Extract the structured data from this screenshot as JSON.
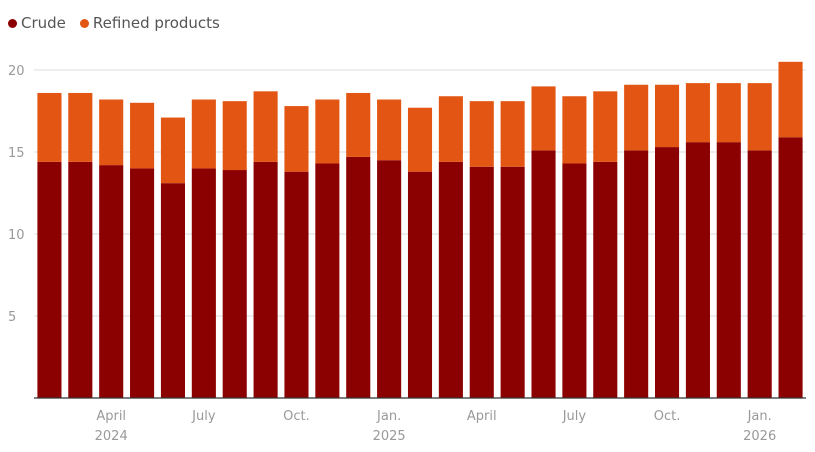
{
  "chart_data": {
    "type": "bar",
    "stacked": true,
    "title": "",
    "xlabel": "",
    "ylabel": "",
    "ylim": [
      0,
      20
    ],
    "yticks": [
      5,
      10,
      15,
      20
    ],
    "grid": true,
    "legend_position": "top-left",
    "categories": [
      "2024-02",
      "2024-03",
      "2024-04",
      "2024-05",
      "2024-06",
      "2024-07",
      "2024-08",
      "2024-09",
      "2024-10",
      "2024-11",
      "2024-12",
      "2025-01",
      "2025-02",
      "2025-03",
      "2025-04",
      "2025-05",
      "2025-06",
      "2025-07",
      "2025-08",
      "2025-09",
      "2025-10",
      "2025-11",
      "2025-12",
      "2026-01",
      "2026-02"
    ],
    "x_tick_labels": [
      {
        "index": 2,
        "label": "April",
        "sub": "2024"
      },
      {
        "index": 5,
        "label": "July",
        "sub": ""
      },
      {
        "index": 8,
        "label": "Oct.",
        "sub": ""
      },
      {
        "index": 11,
        "label": "Jan.",
        "sub": "2025"
      },
      {
        "index": 14,
        "label": "April",
        "sub": ""
      },
      {
        "index": 17,
        "label": "July",
        "sub": ""
      },
      {
        "index": 20,
        "label": "Oct.",
        "sub": ""
      },
      {
        "index": 23,
        "label": "Jan.",
        "sub": "2026"
      }
    ],
    "series": [
      {
        "name": "Crude",
        "color": "#8b0000",
        "values": [
          14.4,
          14.4,
          14.2,
          14.0,
          13.1,
          14.0,
          13.9,
          14.4,
          13.8,
          14.3,
          14.7,
          14.5,
          13.8,
          14.4,
          14.1,
          14.1,
          15.1,
          14.3,
          14.4,
          15.1,
          15.3,
          15.6,
          15.6,
          15.1,
          15.9
        ]
      },
      {
        "name": "Refined products",
        "color": "#e35512",
        "values": [
          4.2,
          4.2,
          4.0,
          4.0,
          4.0,
          4.2,
          4.2,
          4.3,
          4.0,
          3.9,
          3.9,
          3.7,
          3.9,
          4.0,
          4.0,
          4.0,
          3.9,
          4.1,
          4.3,
          4.0,
          3.8,
          3.6,
          3.6,
          4.1,
          4.6
        ]
      }
    ]
  }
}
